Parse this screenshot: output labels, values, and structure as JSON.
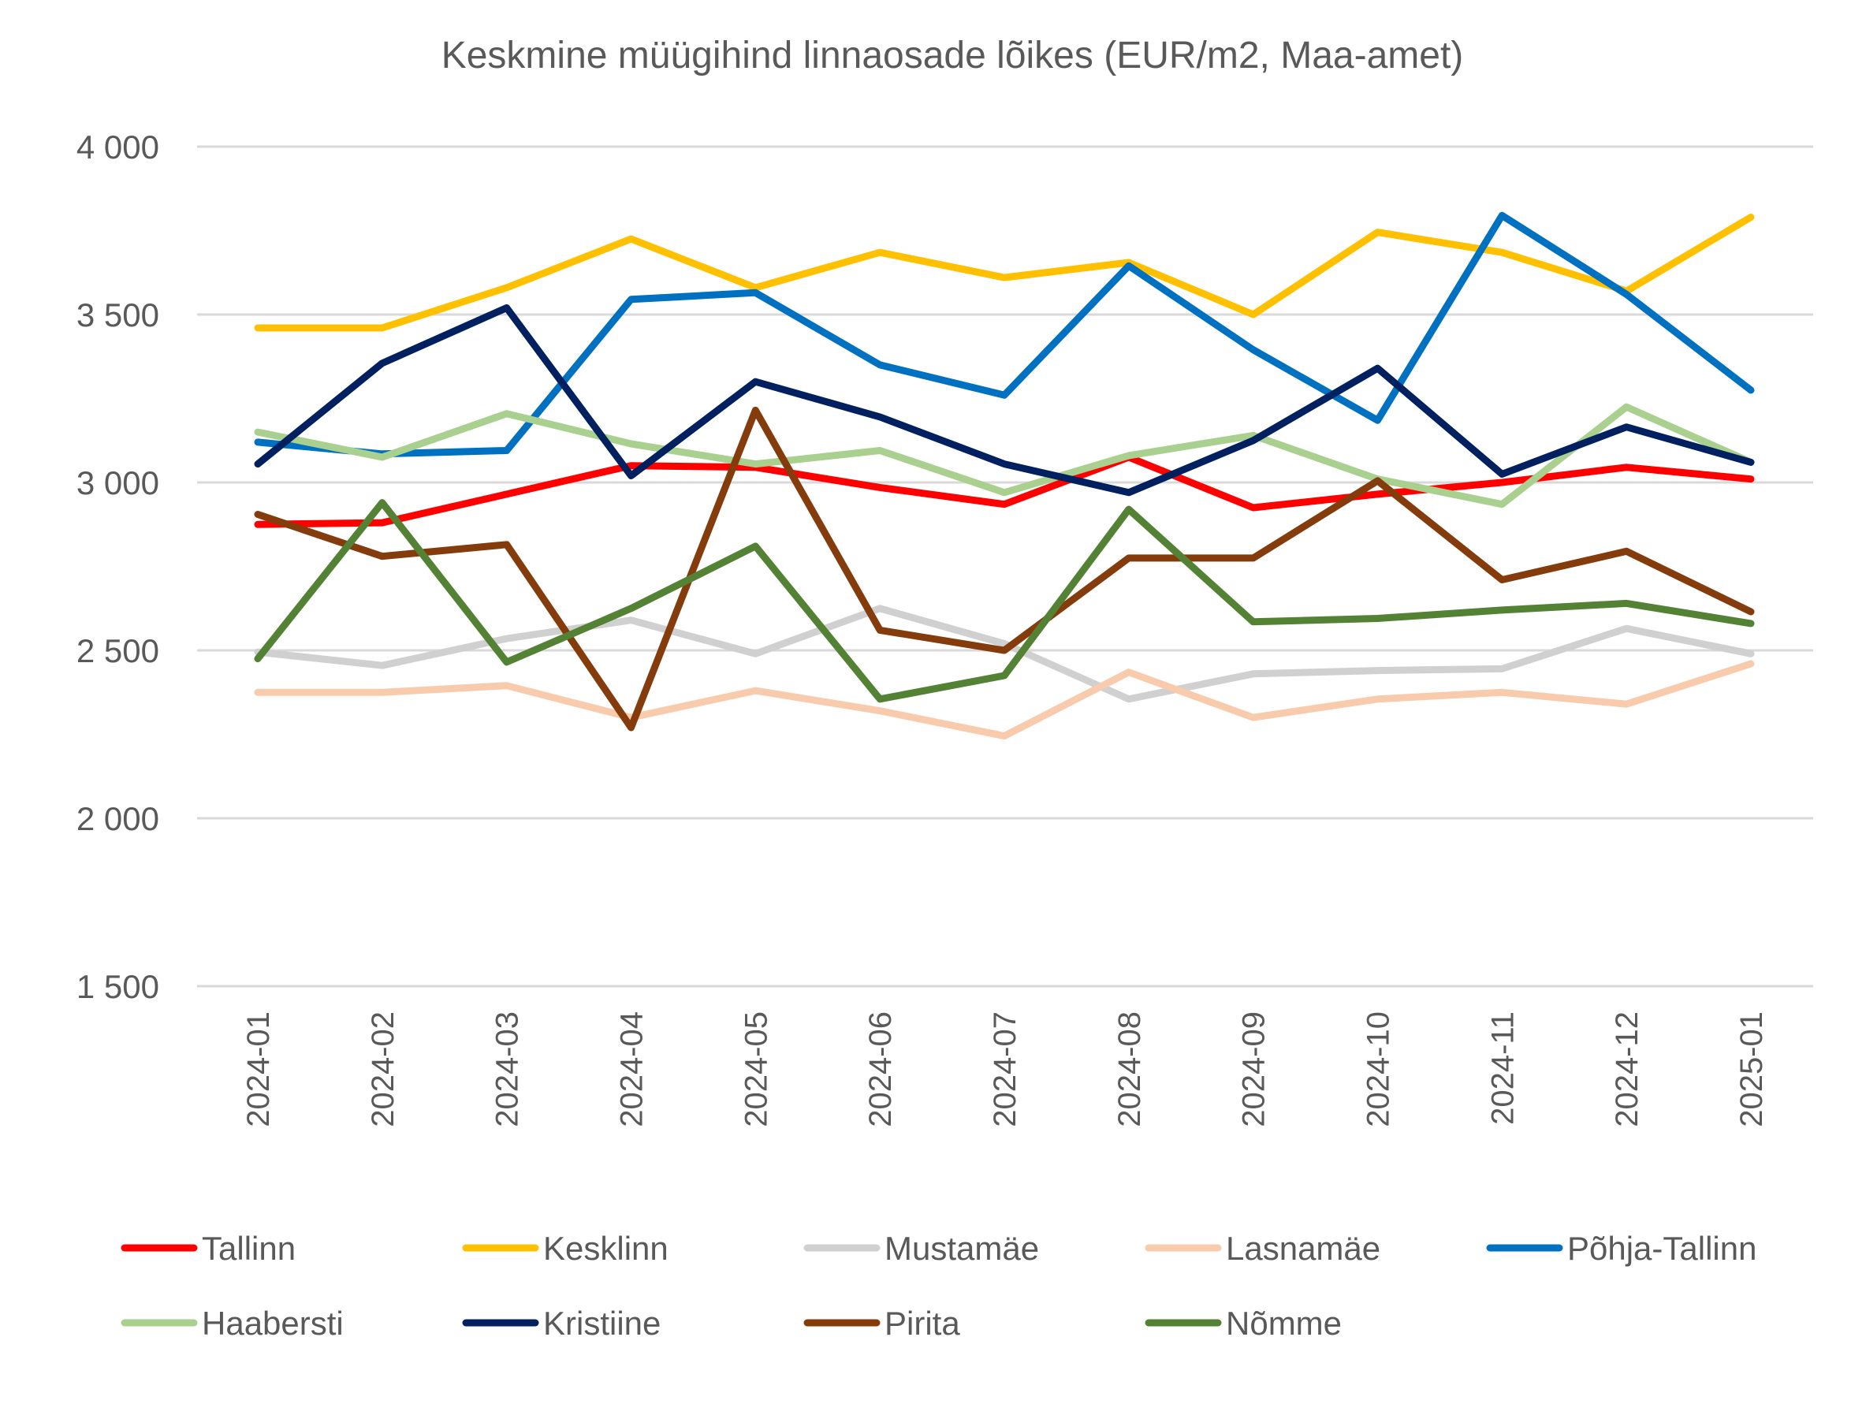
{
  "chart_data": {
    "type": "line",
    "title": "Keskmine müügihind linnaosade lõikes (EUR/m2, Maa-amet)",
    "xlabel": "",
    "ylabel": "",
    "ylim": [
      1500,
      4000
    ],
    "yticks": [
      {
        "value": 1500,
        "label": "1 500"
      },
      {
        "value": 2000,
        "label": "2 000"
      },
      {
        "value": 2500,
        "label": "2 500"
      },
      {
        "value": 3000,
        "label": "3 000"
      },
      {
        "value": 3500,
        "label": "3 500"
      },
      {
        "value": 4000,
        "label": "4 000"
      }
    ],
    "grid": true,
    "legend_position": "bottom",
    "categories": [
      "2024-01",
      "2024-02",
      "2024-03",
      "2024-04",
      "2024-05",
      "2024-06",
      "2024-07",
      "2024-08",
      "2024-09",
      "2024-10",
      "2024-11",
      "2024-12",
      "2025-01"
    ],
    "series": [
      {
        "name": "Tallinn",
        "color": "#ff0000",
        "values": [
          2875,
          2880,
          2965,
          3050,
          3045,
          2985,
          2935,
          3075,
          2925,
          2965,
          3000,
          3045,
          3010
        ]
      },
      {
        "name": "Kesklinn",
        "color": "#ffc000",
        "values": [
          3460,
          3460,
          3580,
          3725,
          3580,
          3685,
          3610,
          3655,
          3500,
          3745,
          3685,
          3570,
          3790
        ]
      },
      {
        "name": "Mustamäe",
        "color": "#d0d0d0",
        "values": [
          2495,
          2455,
          2535,
          2590,
          2490,
          2625,
          2520,
          2355,
          2430,
          2440,
          2445,
          2565,
          2490
        ]
      },
      {
        "name": "Lasnamäe",
        "color": "#f8cbad",
        "values": [
          2375,
          2375,
          2395,
          2300,
          2380,
          2320,
          2245,
          2435,
          2300,
          2355,
          2375,
          2340,
          2460
        ]
      },
      {
        "name": "Põhja-Tallinn",
        "color": "#0070c0",
        "values": [
          3120,
          3085,
          3095,
          3545,
          3565,
          3350,
          3260,
          3645,
          3395,
          3185,
          3795,
          3560,
          3275
        ]
      },
      {
        "name": "Haabersti",
        "color": "#a9d08e",
        "values": [
          3150,
          3075,
          3205,
          3115,
          3055,
          3095,
          2970,
          3080,
          3140,
          3010,
          2935,
          3225,
          3060
        ]
      },
      {
        "name": "Kristiine",
        "color": "#002060",
        "values": [
          3055,
          3355,
          3520,
          3020,
          3300,
          3195,
          3055,
          2970,
          3125,
          3340,
          3025,
          3165,
          3060
        ]
      },
      {
        "name": "Pirita",
        "color": "#843c0c",
        "values": [
          2905,
          2780,
          2815,
          2270,
          3215,
          2560,
          2500,
          2775,
          2775,
          3005,
          2710,
          2795,
          2615
        ]
      },
      {
        "name": "Nõmme",
        "color": "#548235",
        "values": [
          2475,
          2940,
          2465,
          2625,
          2810,
          2355,
          2425,
          2920,
          2585,
          2595,
          2620,
          2640,
          2580
        ]
      }
    ]
  }
}
